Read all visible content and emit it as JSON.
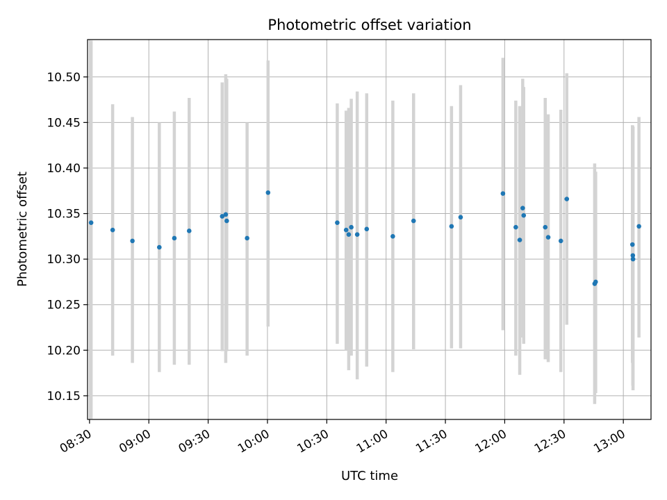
{
  "chart_data": {
    "type": "scatter",
    "title": "Photometric offset variation",
    "xlabel": "UTC time",
    "ylabel": "Photometric offset",
    "xlim": [
      "08:29",
      "13:14"
    ],
    "ylim": [
      10.124,
      10.541
    ],
    "grid": true,
    "x_ticks": [
      "08:30",
      "09:00",
      "09:30",
      "10:00",
      "10:30",
      "11:00",
      "11:30",
      "12:00",
      "12:30",
      "13:00"
    ],
    "y_ticks": [
      "10.15",
      "10.20",
      "10.25",
      "10.30",
      "10.35",
      "10.40",
      "10.45",
      "10.50"
    ],
    "colors": {
      "point": "#1f77b4",
      "errorbar": "#d3d3d3",
      "grid": "#b0b0b0"
    },
    "points": [
      {
        "t": "08:30.8",
        "y": 10.34,
        "lo": 10.075,
        "hi": 10.54
      },
      {
        "t": "08:41.7",
        "y": 10.332,
        "lo": 10.194,
        "hi": 10.47
      },
      {
        "t": "08:51.7",
        "y": 10.32,
        "lo": 10.186,
        "hi": 10.456
      },
      {
        "t": "09:05.3",
        "y": 10.313,
        "lo": 10.176,
        "hi": 10.45
      },
      {
        "t": "09:12.9",
        "y": 10.323,
        "lo": 10.184,
        "hi": 10.462
      },
      {
        "t": "09:20.4",
        "y": 10.331,
        "lo": 10.184,
        "hi": 10.477
      },
      {
        "t": "09:37.1",
        "y": 10.347,
        "lo": 10.199,
        "hi": 10.494
      },
      {
        "t": "09:38.9",
        "y": 10.349,
        "lo": 10.186,
        "hi": 10.503
      },
      {
        "t": "09:39.4",
        "y": 10.342,
        "lo": 10.199,
        "hi": 10.498
      },
      {
        "t": "09:49.7",
        "y": 10.323,
        "lo": 10.194,
        "hi": 10.45
      },
      {
        "t": "10:00.3",
        "y": 10.373,
        "lo": 10.226,
        "hi": 10.518
      },
      {
        "t": "10:35.3",
        "y": 10.34,
        "lo": 10.207,
        "hi": 10.471
      },
      {
        "t": "10:39.8",
        "y": 10.332,
        "lo": 10.2,
        "hi": 10.463
      },
      {
        "t": "10:41.1",
        "y": 10.327,
        "lo": 10.178,
        "hi": 10.466
      },
      {
        "t": "10:42.4",
        "y": 10.335,
        "lo": 10.194,
        "hi": 10.476
      },
      {
        "t": "10:45.4",
        "y": 10.327,
        "lo": 10.168,
        "hi": 10.484
      },
      {
        "t": "10:50.2",
        "y": 10.333,
        "lo": 10.182,
        "hi": 10.482
      },
      {
        "t": "11:03.4",
        "y": 10.325,
        "lo": 10.176,
        "hi": 10.474
      },
      {
        "t": "11:13.9",
        "y": 10.342,
        "lo": 10.201,
        "hi": 10.482
      },
      {
        "t": "11:33.1",
        "y": 10.336,
        "lo": 10.202,
        "hi": 10.468
      },
      {
        "t": "11:37.7",
        "y": 10.346,
        "lo": 10.202,
        "hi": 10.491
      },
      {
        "t": "11:59.1",
        "y": 10.372,
        "lo": 10.222,
        "hi": 10.521
      },
      {
        "t": "12:05.6",
        "y": 10.335,
        "lo": 10.194,
        "hi": 10.474
      },
      {
        "t": "12:07.6",
        "y": 10.321,
        "lo": 10.173,
        "hi": 10.468
      },
      {
        "t": "12:09.1",
        "y": 10.356,
        "lo": 10.214,
        "hi": 10.498
      },
      {
        "t": "12:09.6",
        "y": 10.348,
        "lo": 10.207,
        "hi": 10.489
      },
      {
        "t": "12:20.5",
        "y": 10.335,
        "lo": 10.19,
        "hi": 10.477
      },
      {
        "t": "12:22.0",
        "y": 10.324,
        "lo": 10.187,
        "hi": 10.459
      },
      {
        "t": "12:28.4",
        "y": 10.32,
        "lo": 10.176,
        "hi": 10.464
      },
      {
        "t": "12:31.4",
        "y": 10.366,
        "lo": 10.228,
        "hi": 10.504
      },
      {
        "t": "12:45.5",
        "y": 10.273,
        "lo": 10.141,
        "hi": 10.405
      },
      {
        "t": "12:46.0",
        "y": 10.275,
        "lo": 10.153,
        "hi": 10.396
      },
      {
        "t": "13:04.6",
        "y": 10.316,
        "lo": 10.186,
        "hi": 10.447
      },
      {
        "t": "13:04.8",
        "y": 10.304,
        "lo": 10.161,
        "hi": 10.446
      },
      {
        "t": "13:04.9",
        "y": 10.3,
        "lo": 10.156,
        "hi": 10.445
      },
      {
        "t": "13:07.9",
        "y": 10.336,
        "lo": 10.214,
        "hi": 10.456
      }
    ]
  }
}
